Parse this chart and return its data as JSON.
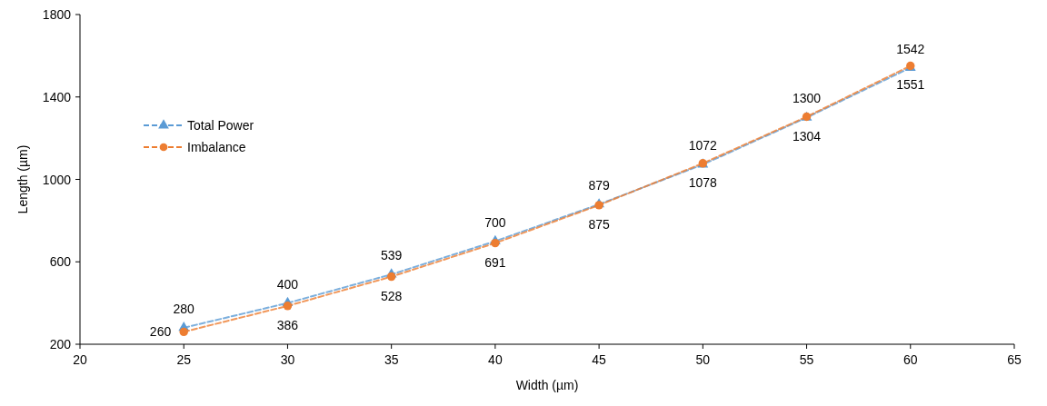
{
  "chart_data": {
    "type": "line",
    "xlabel": "Width (µm)",
    "ylabel": "Length (µm)",
    "x": [
      25,
      30,
      35,
      40,
      45,
      50,
      55,
      60
    ],
    "xlim": [
      20,
      65
    ],
    "xticks": [
      20,
      25,
      30,
      35,
      40,
      45,
      50,
      55,
      60,
      65
    ],
    "ylim": [
      200,
      1800
    ],
    "yticks": [
      200,
      600,
      1000,
      1400,
      1800
    ],
    "grid": false,
    "legend": "top left",
    "line_style": "dashed",
    "data_labels": true,
    "series": [
      {
        "name": "Total Power",
        "color": "#5b9bd5",
        "marker": "triangle",
        "values": [
          280,
          400,
          539,
          700,
          879,
          1072,
          1300,
          1542
        ]
      },
      {
        "name": "Imbalance",
        "color": "#ed7d31",
        "marker": "circle",
        "values": [
          260,
          386,
          528,
          691,
          875,
          1078,
          1304,
          1551
        ]
      }
    ]
  }
}
